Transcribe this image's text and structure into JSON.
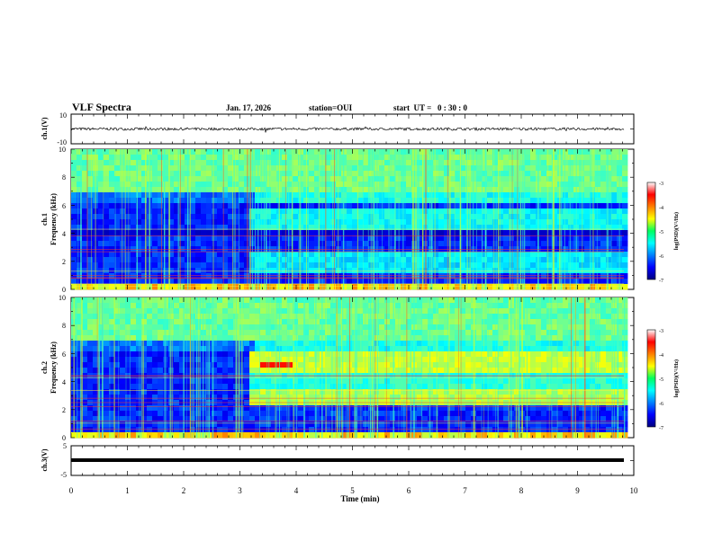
{
  "header": {
    "title": "VLF Spectra",
    "date": "Jan. 17, 2026",
    "station": "station=OUI",
    "start": "start  UT =   0 : 30 : 0"
  },
  "chart_data": [
    {
      "type": "line",
      "name": "ch1-waveform",
      "ylabel": "ch.1(V)",
      "ylim": [
        -10,
        10
      ],
      "y_tick_labels": [
        "10",
        "-10"
      ],
      "xlim": [
        0,
        10
      ],
      "baseline": 0
    },
    {
      "type": "heatmap",
      "name": "ch1-spectrogram",
      "ylabel": "ch.1\nFrequency (kHz)",
      "ylim": [
        0,
        10
      ],
      "y_tick_labels": [
        "0",
        "2",
        "4",
        "6",
        "8",
        "10"
      ],
      "xlim": [
        0,
        10
      ],
      "data_extent_min": 9.8,
      "colorbar": {
        "label": "log(PSD)(V²/Hz)",
        "ticks": [
          "-3",
          "-4",
          "-5",
          "-6",
          "-7"
        ],
        "range": [
          -7,
          -3
        ]
      }
    },
    {
      "type": "heatmap",
      "name": "ch2-spectrogram",
      "ylabel": "ch.2\nFrequency (kHz)",
      "ylim": [
        0,
        10
      ],
      "y_tick_labels": [
        "0",
        "2",
        "4",
        "6",
        "8",
        "10"
      ],
      "xlim": [
        0,
        10
      ],
      "data_extent_min": 9.8,
      "colorbar": {
        "label": "log(PSD)(V²/Hz)",
        "ticks": [
          "-3",
          "-4",
          "-5",
          "-6",
          "-7"
        ],
        "range": [
          -7,
          -3
        ]
      }
    },
    {
      "type": "line",
      "name": "ch3-waveform",
      "ylabel": "ch.3(V)",
      "ylim": [
        -5,
        5
      ],
      "y_tick_labels": [
        "5",
        "-5"
      ],
      "xlim": [
        0,
        10
      ],
      "baseline": -0.3
    }
  ],
  "x_axis": {
    "label": "Time (min)",
    "ticks": [
      "0",
      "1",
      "2",
      "3",
      "4",
      "5",
      "6",
      "7",
      "8",
      "9",
      "10"
    ]
  }
}
